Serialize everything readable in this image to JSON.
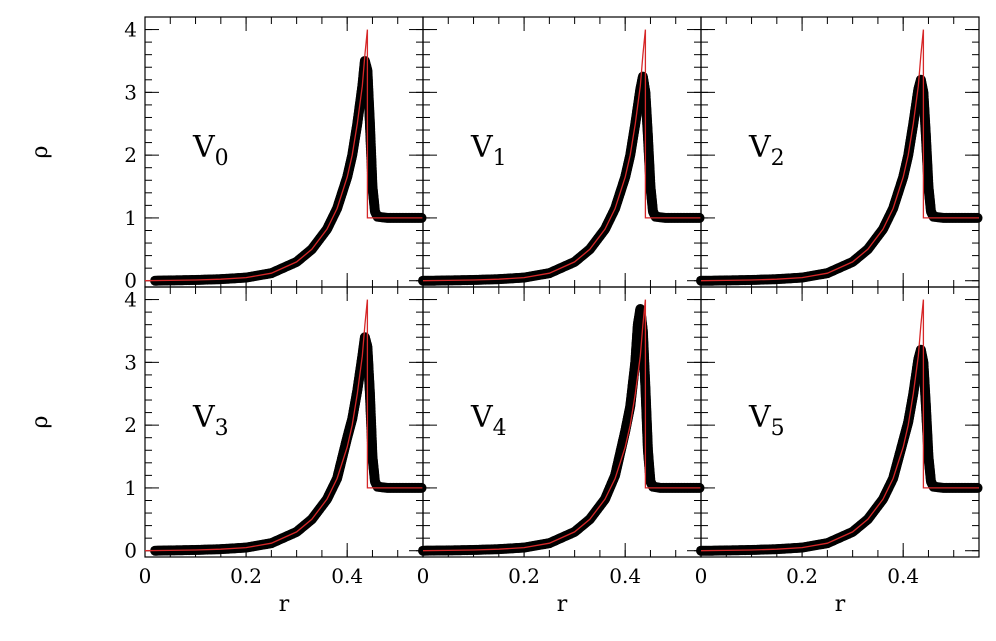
{
  "chart_data": {
    "type": "scatter",
    "layout": "2x3 panels, shared axes",
    "xlabel": "r",
    "ylabel": "ρ",
    "xlim": [
      0,
      0.55
    ],
    "ylim": [
      -0.1,
      4.2
    ],
    "x_ticks": [
      0,
      0.2,
      0.4
    ],
    "x_tick_labels": [
      "0",
      "0.2",
      "0.4"
    ],
    "y_ticks": [
      0,
      1,
      2,
      3,
      4
    ],
    "y_tick_labels": [
      "0",
      "1",
      "2",
      "3",
      "4"
    ],
    "reference_curve": {
      "color": "#d62728",
      "description": "analytic solution, same in every panel",
      "points": [
        [
          0.0,
          0.0
        ],
        [
          0.05,
          0.005
        ],
        [
          0.1,
          0.012
        ],
        [
          0.15,
          0.025
        ],
        [
          0.2,
          0.05
        ],
        [
          0.25,
          0.12
        ],
        [
          0.3,
          0.3
        ],
        [
          0.33,
          0.5
        ],
        [
          0.36,
          0.82
        ],
        [
          0.38,
          1.15
        ],
        [
          0.4,
          1.65
        ],
        [
          0.41,
          2.0
        ],
        [
          0.42,
          2.5
        ],
        [
          0.43,
          3.1
        ],
        [
          0.435,
          3.6
        ],
        [
          0.44,
          4.0
        ],
        [
          0.44,
          1.0
        ],
        [
          0.55,
          1.0
        ]
      ]
    },
    "panels": [
      {
        "label_main": "V",
        "label_sub": "0",
        "color": "#000000",
        "points": [
          [
            0.02,
            0.0
          ],
          [
            0.05,
            0.005
          ],
          [
            0.1,
            0.012
          ],
          [
            0.15,
            0.025
          ],
          [
            0.2,
            0.05
          ],
          [
            0.25,
            0.12
          ],
          [
            0.3,
            0.3
          ],
          [
            0.33,
            0.5
          ],
          [
            0.36,
            0.82
          ],
          [
            0.38,
            1.15
          ],
          [
            0.4,
            1.65
          ],
          [
            0.41,
            2.0
          ],
          [
            0.42,
            2.5
          ],
          [
            0.43,
            3.1
          ],
          [
            0.435,
            3.5
          ],
          [
            0.44,
            3.35
          ],
          [
            0.445,
            2.5
          ],
          [
            0.45,
            1.5
          ],
          [
            0.455,
            1.1
          ],
          [
            0.46,
            1.02
          ],
          [
            0.48,
            1.0
          ],
          [
            0.55,
            1.0
          ]
        ]
      },
      {
        "label_main": "V",
        "label_sub": "1",
        "color": "#000000",
        "points": [
          [
            0.0,
            0.0
          ],
          [
            0.02,
            0.0
          ],
          [
            0.05,
            0.005
          ],
          [
            0.1,
            0.012
          ],
          [
            0.15,
            0.025
          ],
          [
            0.2,
            0.05
          ],
          [
            0.25,
            0.12
          ],
          [
            0.3,
            0.3
          ],
          [
            0.33,
            0.5
          ],
          [
            0.36,
            0.82
          ],
          [
            0.38,
            1.15
          ],
          [
            0.4,
            1.65
          ],
          [
            0.41,
            2.0
          ],
          [
            0.42,
            2.5
          ],
          [
            0.43,
            3.05
          ],
          [
            0.435,
            3.25
          ],
          [
            0.44,
            3.0
          ],
          [
            0.445,
            2.3
          ],
          [
            0.45,
            1.5
          ],
          [
            0.455,
            1.1
          ],
          [
            0.46,
            1.02
          ],
          [
            0.48,
            1.0
          ],
          [
            0.55,
            1.0
          ]
        ]
      },
      {
        "label_main": "V",
        "label_sub": "2",
        "color": "#000000",
        "points": [
          [
            0.0,
            0.0
          ],
          [
            0.02,
            0.0
          ],
          [
            0.05,
            0.005
          ],
          [
            0.1,
            0.012
          ],
          [
            0.15,
            0.025
          ],
          [
            0.2,
            0.05
          ],
          [
            0.25,
            0.12
          ],
          [
            0.3,
            0.3
          ],
          [
            0.33,
            0.5
          ],
          [
            0.36,
            0.82
          ],
          [
            0.38,
            1.15
          ],
          [
            0.4,
            1.65
          ],
          [
            0.41,
            2.0
          ],
          [
            0.42,
            2.5
          ],
          [
            0.43,
            3.05
          ],
          [
            0.435,
            3.2
          ],
          [
            0.44,
            3.0
          ],
          [
            0.445,
            2.3
          ],
          [
            0.45,
            1.5
          ],
          [
            0.455,
            1.1
          ],
          [
            0.46,
            1.02
          ],
          [
            0.48,
            1.0
          ],
          [
            0.55,
            1.0
          ]
        ]
      },
      {
        "label_main": "V",
        "label_sub": "3",
        "color": "#000000",
        "points": [
          [
            0.02,
            0.0
          ],
          [
            0.05,
            0.005
          ],
          [
            0.1,
            0.012
          ],
          [
            0.15,
            0.025
          ],
          [
            0.2,
            0.05
          ],
          [
            0.25,
            0.12
          ],
          [
            0.3,
            0.3
          ],
          [
            0.33,
            0.5
          ],
          [
            0.36,
            0.82
          ],
          [
            0.38,
            1.15
          ],
          [
            0.4,
            1.8
          ],
          [
            0.41,
            2.1
          ],
          [
            0.42,
            2.55
          ],
          [
            0.43,
            3.1
          ],
          [
            0.435,
            3.4
          ],
          [
            0.44,
            3.25
          ],
          [
            0.445,
            2.5
          ],
          [
            0.45,
            1.5
          ],
          [
            0.455,
            1.1
          ],
          [
            0.46,
            1.02
          ],
          [
            0.48,
            1.0
          ],
          [
            0.55,
            1.0
          ]
        ]
      },
      {
        "label_main": "V",
        "label_sub": "4",
        "color": "#000000",
        "points": [
          [
            0.0,
            0.0
          ],
          [
            0.05,
            0.005
          ],
          [
            0.1,
            0.012
          ],
          [
            0.15,
            0.025
          ],
          [
            0.2,
            0.05
          ],
          [
            0.25,
            0.12
          ],
          [
            0.3,
            0.3
          ],
          [
            0.33,
            0.5
          ],
          [
            0.36,
            0.82
          ],
          [
            0.38,
            1.2
          ],
          [
            0.4,
            1.9
          ],
          [
            0.41,
            2.3
          ],
          [
            0.42,
            3.0
          ],
          [
            0.425,
            3.6
          ],
          [
            0.43,
            3.85
          ],
          [
            0.435,
            3.5
          ],
          [
            0.44,
            2.6
          ],
          [
            0.445,
            1.6
          ],
          [
            0.45,
            1.1
          ],
          [
            0.455,
            1.02
          ],
          [
            0.47,
            1.0
          ],
          [
            0.55,
            1.0
          ]
        ]
      },
      {
        "label_main": "V",
        "label_sub": "5",
        "color": "#000000",
        "points": [
          [
            0.0,
            0.0
          ],
          [
            0.02,
            0.0
          ],
          [
            0.05,
            0.005
          ],
          [
            0.1,
            0.012
          ],
          [
            0.15,
            0.025
          ],
          [
            0.2,
            0.05
          ],
          [
            0.25,
            0.12
          ],
          [
            0.3,
            0.3
          ],
          [
            0.33,
            0.5
          ],
          [
            0.36,
            0.82
          ],
          [
            0.38,
            1.15
          ],
          [
            0.4,
            1.75
          ],
          [
            0.41,
            2.05
          ],
          [
            0.42,
            2.5
          ],
          [
            0.43,
            3.05
          ],
          [
            0.435,
            3.2
          ],
          [
            0.44,
            3.0
          ],
          [
            0.445,
            2.3
          ],
          [
            0.45,
            1.5
          ],
          [
            0.455,
            1.1
          ],
          [
            0.46,
            1.02
          ],
          [
            0.48,
            1.0
          ],
          [
            0.55,
            1.0
          ]
        ]
      }
    ]
  }
}
